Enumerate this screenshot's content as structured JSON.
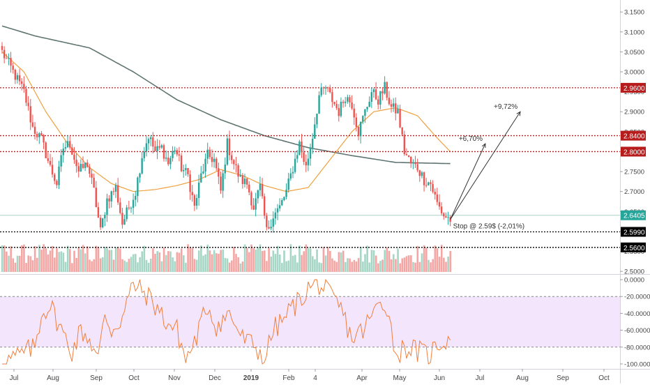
{
  "chart_data": [
    {
      "type": "candlestick",
      "panel": "price",
      "title": "",
      "x_labels": [
        "Jul",
        "Aug",
        "Sep",
        "Oct",
        "Nov",
        "Dec",
        "2019",
        "Feb",
        "4",
        "Apr",
        "May",
        "Jun",
        "Jul",
        "Aug",
        "Sep",
        "Oct"
      ],
      "y_ticks": [
        2.5,
        2.55,
        2.6,
        2.65,
        2.7,
        2.75,
        2.8,
        2.85,
        2.9,
        2.95,
        3.0,
        3.05,
        3.1,
        3.15
      ],
      "y_tick_labels": [
        "2.5000",
        "2.5500",
        "2.6000",
        "2.6500",
        "2.7000",
        "2.7500",
        "2.8000",
        "2.8500",
        "2.9000",
        "2.9500",
        "3.0000",
        "3.0500",
        "3.1000",
        "3.1500"
      ],
      "ylim": [
        2.495,
        3.18
      ],
      "candle_waypoints": [
        [
          0,
          3.05
        ],
        [
          5,
          3.0
        ],
        [
          10,
          2.95
        ],
        [
          14,
          2.86
        ],
        [
          18,
          2.83
        ],
        [
          22,
          2.76
        ],
        [
          25,
          2.72
        ],
        [
          28,
          2.81
        ],
        [
          31,
          2.82
        ],
        [
          35,
          2.75
        ],
        [
          39,
          2.77
        ],
        [
          42,
          2.7
        ],
        [
          45,
          2.6
        ],
        [
          48,
          2.68
        ],
        [
          52,
          2.71
        ],
        [
          55,
          2.62
        ],
        [
          58,
          2.66
        ],
        [
          61,
          2.7
        ],
        [
          64,
          2.79
        ],
        [
          67,
          2.84
        ],
        [
          70,
          2.8
        ],
        [
          73,
          2.81
        ],
        [
          76,
          2.77
        ],
        [
          79,
          2.81
        ],
        [
          82,
          2.76
        ],
        [
          85,
          2.74
        ],
        [
          88,
          2.66
        ],
        [
          91,
          2.74
        ],
        [
          94,
          2.79
        ],
        [
          97,
          2.78
        ],
        [
          100,
          2.7
        ],
        [
          103,
          2.82
        ],
        [
          106,
          2.77
        ],
        [
          109,
          2.73
        ],
        [
          112,
          2.72
        ],
        [
          115,
          2.66
        ],
        [
          118,
          2.71
        ],
        [
          121,
          2.6
        ],
        [
          124,
          2.64
        ],
        [
          127,
          2.66
        ],
        [
          130,
          2.7
        ],
        [
          133,
          2.76
        ],
        [
          136,
          2.82
        ],
        [
          139,
          2.76
        ],
        [
          142,
          2.84
        ],
        [
          145,
          2.94
        ],
        [
          148,
          2.96
        ],
        [
          151,
          2.93
        ],
        [
          154,
          2.9
        ],
        [
          157,
          2.94
        ],
        [
          160,
          2.92
        ],
        [
          163,
          2.85
        ],
        [
          166,
          2.9
        ],
        [
          169,
          2.95
        ],
        [
          172,
          2.93
        ],
        [
          175,
          2.96
        ],
        [
          178,
          2.91
        ],
        [
          181,
          2.9
        ],
        [
          184,
          2.8
        ],
        [
          187,
          2.77
        ],
        [
          190,
          2.76
        ],
        [
          193,
          2.73
        ],
        [
          196,
          2.72
        ],
        [
          199,
          2.67
        ],
        [
          202,
          2.64
        ],
        [
          205,
          2.63
        ]
      ],
      "candle_count": 206,
      "colors": {
        "up": "#26a69a",
        "down": "#ef5350",
        "ma200": "#5e7470",
        "ma50": "#f0a040"
      },
      "moving_averages": [
        {
          "name": "",
          "color": "#5e7470",
          "points": [
            [
              0,
              3.115
            ],
            [
              15,
              3.09
            ],
            [
              40,
              3.06
            ],
            [
              60,
              3.0
            ],
            [
              80,
              2.93
            ],
            [
              100,
              2.88
            ],
            [
              120,
              2.84
            ],
            [
              140,
              2.81
            ],
            [
              160,
              2.79
            ],
            [
              180,
              2.773
            ],
            [
              205,
              2.77
            ]
          ]
        },
        {
          "name": "",
          "color": "#f0a040",
          "points": [
            [
              0,
              3.05
            ],
            [
              10,
              3.0
            ],
            [
              20,
              2.9
            ],
            [
              30,
              2.82
            ],
            [
              40,
              2.76
            ],
            [
              50,
              2.72
            ],
            [
              60,
              2.7
            ],
            [
              70,
              2.705
            ],
            [
              80,
              2.715
            ],
            [
              90,
              2.73
            ],
            [
              100,
              2.755
            ],
            [
              110,
              2.74
            ],
            [
              120,
              2.715
            ],
            [
              130,
              2.7
            ],
            [
              140,
              2.71
            ],
            [
              150,
              2.78
            ],
            [
              160,
              2.85
            ],
            [
              170,
              2.9
            ],
            [
              180,
              2.91
            ],
            [
              190,
              2.89
            ],
            [
              198,
              2.84
            ],
            [
              205,
              2.8
            ]
          ]
        }
      ],
      "horizontal_levels": [
        {
          "value": 2.96,
          "label": "2.9600",
          "color": "#b71c1c",
          "style": "dotted"
        },
        {
          "value": 2.84,
          "label": "2.8400",
          "color": "#b71c1c",
          "style": "dotted"
        },
        {
          "value": 2.8,
          "label": "2.8000",
          "color": "#b71c1c",
          "style": "dotted"
        },
        {
          "value": 2.599,
          "label": "2.5990",
          "color": "#000000",
          "style": "dotted"
        },
        {
          "value": 2.56,
          "label": "2.5600",
          "color": "#000000",
          "style": "dotted"
        }
      ],
      "last_price": {
        "value": 2.6405,
        "label": "2.6405",
        "color": "#a8d4c4"
      },
      "annotations": [
        {
          "text": "Stop @ 2.59$ (-2,01%)",
          "x_index": 205,
          "y": 2.615
        },
        {
          "text": "+6,70%",
          "target_x_index": 221,
          "target_y": 2.82
        },
        {
          "text": "+9,72%",
          "target_x_index": 237,
          "target_y": 2.9
        }
      ],
      "volume": {
        "description": "volume histogram overlaid at bottom of price panel",
        "colors": {
          "up": "#a5d6c6",
          "down": "#f4a6a4"
        }
      }
    },
    {
      "type": "line",
      "panel": "oscillator",
      "title": "",
      "ylim": [
        -105,
        5
      ],
      "y_ticks": [
        0,
        -20,
        -40,
        -60,
        -80,
        -100
      ],
      "y_tick_labels": [
        "0.0000",
        "-20.0000",
        "-40.0000",
        "-60.0000",
        "-80.0000",
        "-100.0000"
      ],
      "band": [
        -80,
        -20
      ],
      "band_color": "#f3e5fc",
      "line_color": "#f07f3c",
      "waypoints": [
        [
          0,
          -98
        ],
        [
          8,
          -90
        ],
        [
          15,
          -80
        ],
        [
          18,
          -40
        ],
        [
          22,
          -30
        ],
        [
          28,
          -65
        ],
        [
          32,
          -85
        ],
        [
          36,
          -60
        ],
        [
          40,
          -70
        ],
        [
          44,
          -95
        ],
        [
          47,
          -40
        ],
        [
          50,
          -60
        ],
        [
          55,
          -45
        ],
        [
          60,
          -5
        ],
        [
          65,
          -15
        ],
        [
          70,
          -30
        ],
        [
          75,
          -50
        ],
        [
          80,
          -60
        ],
        [
          84,
          -95
        ],
        [
          88,
          -75
        ],
        [
          94,
          -30
        ],
        [
          98,
          -55
        ],
        [
          104,
          -40
        ],
        [
          110,
          -70
        ],
        [
          116,
          -80
        ],
        [
          120,
          -95
        ],
        [
          124,
          -60
        ],
        [
          128,
          -50
        ],
        [
          132,
          -35
        ],
        [
          136,
          -25
        ],
        [
          140,
          -10
        ],
        [
          145,
          -5
        ],
        [
          150,
          -20
        ],
        [
          155,
          -35
        ],
        [
          160,
          -70
        ],
        [
          165,
          -60
        ],
        [
          170,
          -40
        ],
        [
          173,
          -25
        ],
        [
          176,
          -30
        ],
        [
          178,
          -60
        ],
        [
          180,
          -88
        ],
        [
          185,
          -80
        ],
        [
          190,
          -85
        ],
        [
          195,
          -90
        ],
        [
          200,
          -75
        ],
        [
          205,
          -70
        ]
      ]
    }
  ]
}
